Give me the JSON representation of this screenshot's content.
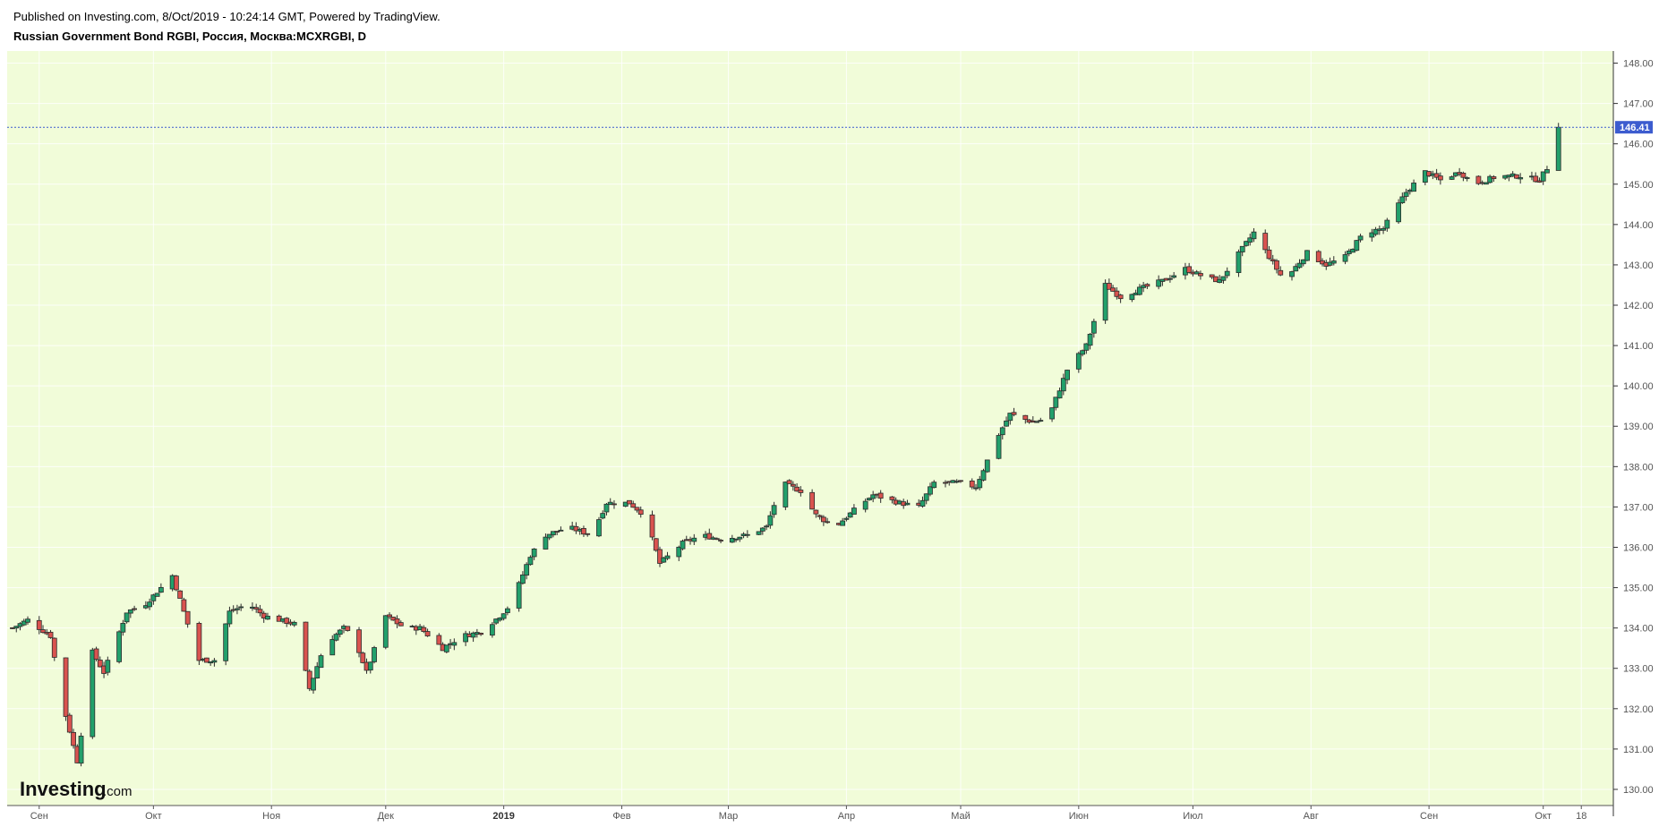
{
  "header": {
    "published": "Published on Investing.com, 8/Oct/2019 - 10:24:14 GMT, Powered by TradingView.",
    "title": "Russian Government Bond RGBI, Россия, Москва:MCXRGBI, D"
  },
  "logo": {
    "main": "Investing",
    "suffix": ".com"
  },
  "colors": {
    "background": "#f1fcd9",
    "up": "#22a06b",
    "down": "#d9534f",
    "wick": "#2b2b2b",
    "last_line": "#3c5ccf",
    "last_label_bg": "#3c5ccf"
  },
  "chart_data": {
    "type": "candlestick",
    "title": "Russian Government Bond RGBI, Россия, Москва:MCXRGBI, D",
    "ylim": [
      129.6,
      148.3
    ],
    "y_ticks": [
      "130.00",
      "131.00",
      "132.00",
      "133.00",
      "134.00",
      "135.00",
      "136.00",
      "137.00",
      "138.00",
      "139.00",
      "140.00",
      "141.00",
      "142.00",
      "143.00",
      "144.00",
      "145.00",
      "146.00",
      "147.00",
      "148.00"
    ],
    "x_ticks": [
      {
        "label": "Сен",
        "day": 7,
        "bold": false
      },
      {
        "label": "Окт",
        "day": 37,
        "bold": false
      },
      {
        "label": "Ноя",
        "day": 68,
        "bold": false
      },
      {
        "label": "Дек",
        "day": 98,
        "bold": false
      },
      {
        "label": "2019",
        "day": 129,
        "bold": true
      },
      {
        "label": "Фев",
        "day": 160,
        "bold": false
      },
      {
        "label": "Мар",
        "day": 188,
        "bold": false
      },
      {
        "label": "Апр",
        "day": 219,
        "bold": false
      },
      {
        "label": "Май",
        "day": 249,
        "bold": false
      },
      {
        "label": "Июн",
        "day": 280,
        "bold": false
      },
      {
        "label": "Июл",
        "day": 310,
        "bold": false
      },
      {
        "label": "Авг",
        "day": 341,
        "bold": false
      },
      {
        "label": "Сен",
        "day": 372,
        "bold": false
      },
      {
        "label": "Окт",
        "day": 402,
        "bold": false
      },
      {
        "label": "18",
        "day": 412,
        "bold": false
      }
    ],
    "x_domain_days": [
      0,
      419
    ],
    "last_value": "146.41",
    "last_price": 146.41,
    "anchors": [
      {
        "day": 0,
        "close": 134.0
      },
      {
        "day": 4,
        "close": 134.2
      },
      {
        "day": 10,
        "close": 133.8
      },
      {
        "day": 13,
        "close": 132.2
      },
      {
        "day": 17,
        "close": 130.7
      },
      {
        "day": 21,
        "close": 133.4
      },
      {
        "day": 24,
        "close": 132.9
      },
      {
        "day": 30,
        "close": 134.4
      },
      {
        "day": 35,
        "close": 134.6
      },
      {
        "day": 42,
        "close": 135.3
      },
      {
        "day": 44,
        "close": 134.7
      },
      {
        "day": 49,
        "close": 133.2
      },
      {
        "day": 53,
        "close": 133.2
      },
      {
        "day": 57,
        "close": 134.4
      },
      {
        "day": 62,
        "close": 134.6
      },
      {
        "day": 66,
        "close": 134.3
      },
      {
        "day": 74,
        "close": 134.1
      },
      {
        "day": 78,
        "close": 132.5
      },
      {
        "day": 82,
        "close": 133.6
      },
      {
        "day": 87,
        "close": 134.0
      },
      {
        "day": 90,
        "close": 133.7
      },
      {
        "day": 93,
        "close": 132.9
      },
      {
        "day": 98,
        "close": 134.3
      },
      {
        "day": 103,
        "close": 134.0
      },
      {
        "day": 107,
        "close": 134.0
      },
      {
        "day": 113,
        "close": 133.5
      },
      {
        "day": 118,
        "close": 133.8
      },
      {
        "day": 123,
        "close": 133.9
      },
      {
        "day": 128,
        "close": 134.3
      },
      {
        "day": 131,
        "close": 134.6
      },
      {
        "day": 136,
        "close": 135.8
      },
      {
        "day": 140,
        "close": 136.3
      },
      {
        "day": 146,
        "close": 136.5
      },
      {
        "day": 152,
        "close": 136.3
      },
      {
        "day": 156,
        "close": 137.1
      },
      {
        "day": 162,
        "close": 137.1
      },
      {
        "day": 166,
        "close": 136.8
      },
      {
        "day": 170,
        "close": 135.6
      },
      {
        "day": 176,
        "close": 136.1
      },
      {
        "day": 181,
        "close": 136.3
      },
      {
        "day": 186,
        "close": 136.2
      },
      {
        "day": 193,
        "close": 136.3
      },
      {
        "day": 198,
        "close": 136.5
      },
      {
        "day": 202,
        "close": 137.6
      },
      {
        "day": 207,
        "close": 137.4
      },
      {
        "day": 211,
        "close": 136.8
      },
      {
        "day": 216,
        "close": 136.5
      },
      {
        "day": 222,
        "close": 137.0
      },
      {
        "day": 226,
        "close": 137.3
      },
      {
        "day": 233,
        "close": 137.1
      },
      {
        "day": 238,
        "close": 137.0
      },
      {
        "day": 242,
        "close": 137.6
      },
      {
        "day": 248,
        "close": 137.6
      },
      {
        "day": 253,
        "close": 137.5
      },
      {
        "day": 259,
        "close": 138.8
      },
      {
        "day": 262,
        "close": 139.3
      },
      {
        "day": 268,
        "close": 139.1
      },
      {
        "day": 272,
        "close": 139.2
      },
      {
        "day": 277,
        "close": 140.4
      },
      {
        "day": 282,
        "close": 141.0
      },
      {
        "day": 287,
        "close": 142.5
      },
      {
        "day": 291,
        "close": 142.2
      },
      {
        "day": 296,
        "close": 142.4
      },
      {
        "day": 302,
        "close": 142.6
      },
      {
        "day": 308,
        "close": 142.9
      },
      {
        "day": 313,
        "close": 142.7
      },
      {
        "day": 317,
        "close": 142.6
      },
      {
        "day": 323,
        "close": 143.4
      },
      {
        "day": 326,
        "close": 143.8
      },
      {
        "day": 330,
        "close": 143.2
      },
      {
        "day": 334,
        "close": 142.6
      },
      {
        "day": 340,
        "close": 143.3
      },
      {
        "day": 345,
        "close": 143.0
      },
      {
        "day": 350,
        "close": 143.2
      },
      {
        "day": 355,
        "close": 143.8
      },
      {
        "day": 360,
        "close": 143.9
      },
      {
        "day": 366,
        "close": 144.8
      },
      {
        "day": 371,
        "close": 145.3
      },
      {
        "day": 375,
        "close": 145.1
      },
      {
        "day": 380,
        "close": 145.3
      },
      {
        "day": 384,
        "close": 145.0
      },
      {
        "day": 390,
        "close": 145.2
      },
      {
        "day": 396,
        "close": 145.2
      },
      {
        "day": 401,
        "close": 145.1
      },
      {
        "day": 403,
        "close": 145.4
      },
      {
        "day": 404,
        "close": 146.0
      },
      {
        "day": 406,
        "close": 146.41
      }
    ]
  }
}
